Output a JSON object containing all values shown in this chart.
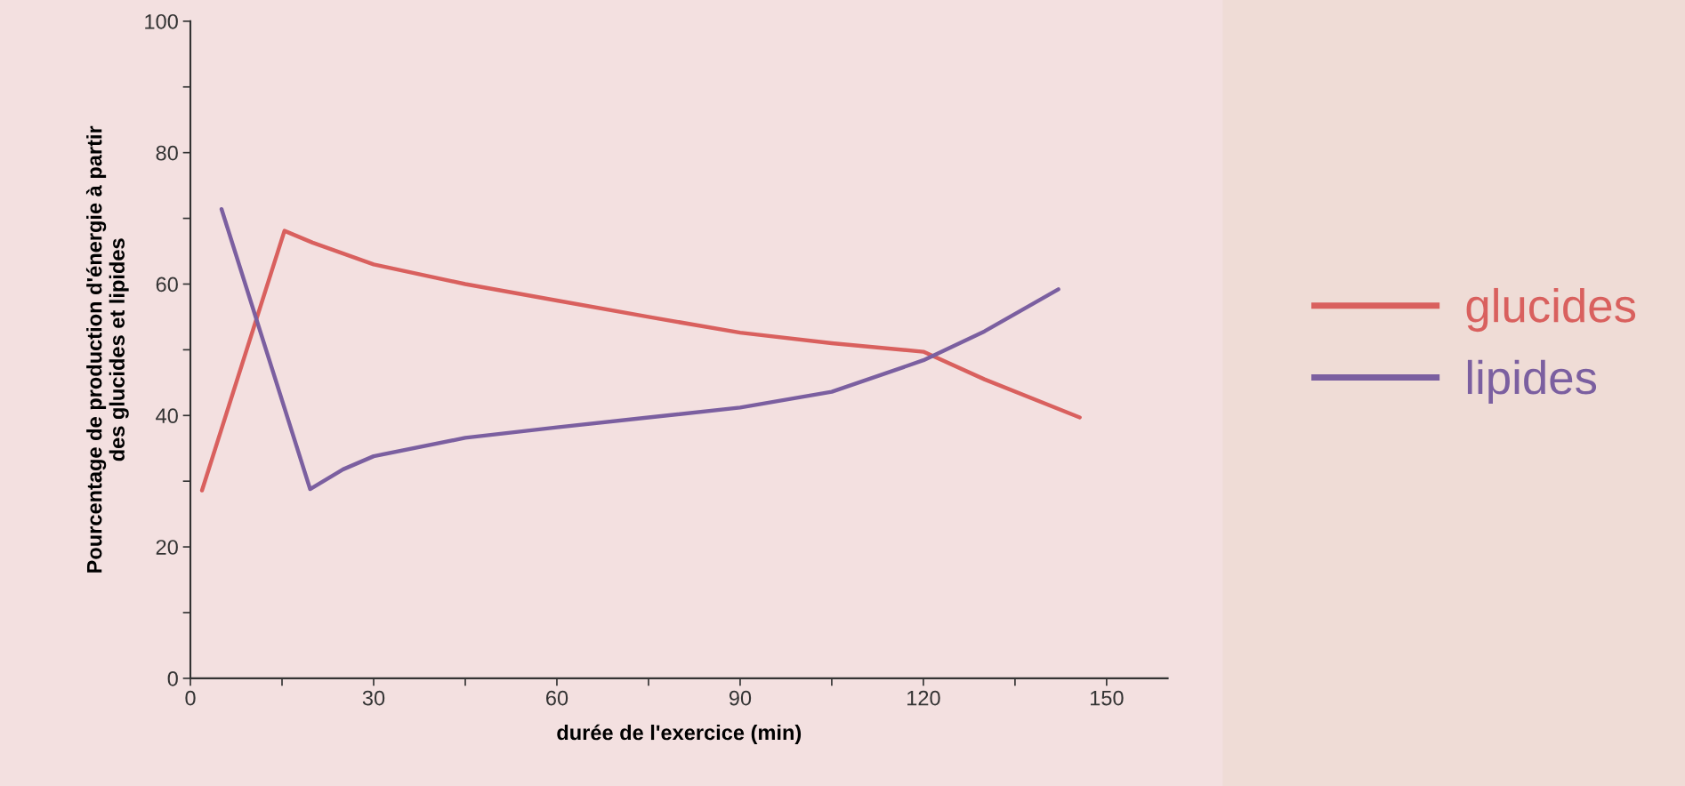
{
  "chart_data": {
    "type": "line",
    "xlabel": "durée de l'exercice (min)",
    "ylabel": "Pourcentage de production d'énergie à partir\ndes glucides et lipides",
    "xlim": [
      0,
      160
    ],
    "ylim": [
      0,
      100
    ],
    "xticks": [
      0,
      {
        "value": 15,
        "label": null
      },
      30,
      {
        "value": 45,
        "label": null
      },
      60,
      {
        "value": 75,
        "label": null
      },
      90,
      {
        "value": 105,
        "label": null
      },
      120,
      {
        "value": 135,
        "label": null
      },
      150
    ],
    "yticks": [
      0,
      {
        "value": 10,
        "label": null
      },
      20,
      {
        "value": 30,
        "label": null
      },
      40,
      {
        "value": 50,
        "label": null
      },
      60,
      {
        "value": 70,
        "label": null
      },
      80,
      {
        "value": 90,
        "label": null
      },
      100
    ],
    "grid": false,
    "legend": "right",
    "marker": "none",
    "line_style": "solid",
    "series": [
      {
        "name": "glucides",
        "color": "#d9605e",
        "x": [
          1.9,
          15.4,
          20,
          30,
          45,
          60,
          75,
          90,
          105,
          120,
          130,
          145.6
        ],
        "values": [
          28.6,
          68.1,
          66.3,
          63,
          60,
          57.5,
          55,
          52.6,
          51,
          49.7,
          45.5,
          39.7
        ]
      },
      {
        "name": "lipides",
        "color": "#7b5fa0",
        "x": [
          5.1,
          19.6,
          25,
          30,
          45,
          60,
          75,
          90,
          105,
          120,
          130,
          142.1
        ],
        "values": [
          71.4,
          28.8,
          31.8,
          33.8,
          36.6,
          38.2,
          39.7,
          41.2,
          43.6,
          48.4,
          52.8,
          59.2
        ]
      }
    ]
  }
}
